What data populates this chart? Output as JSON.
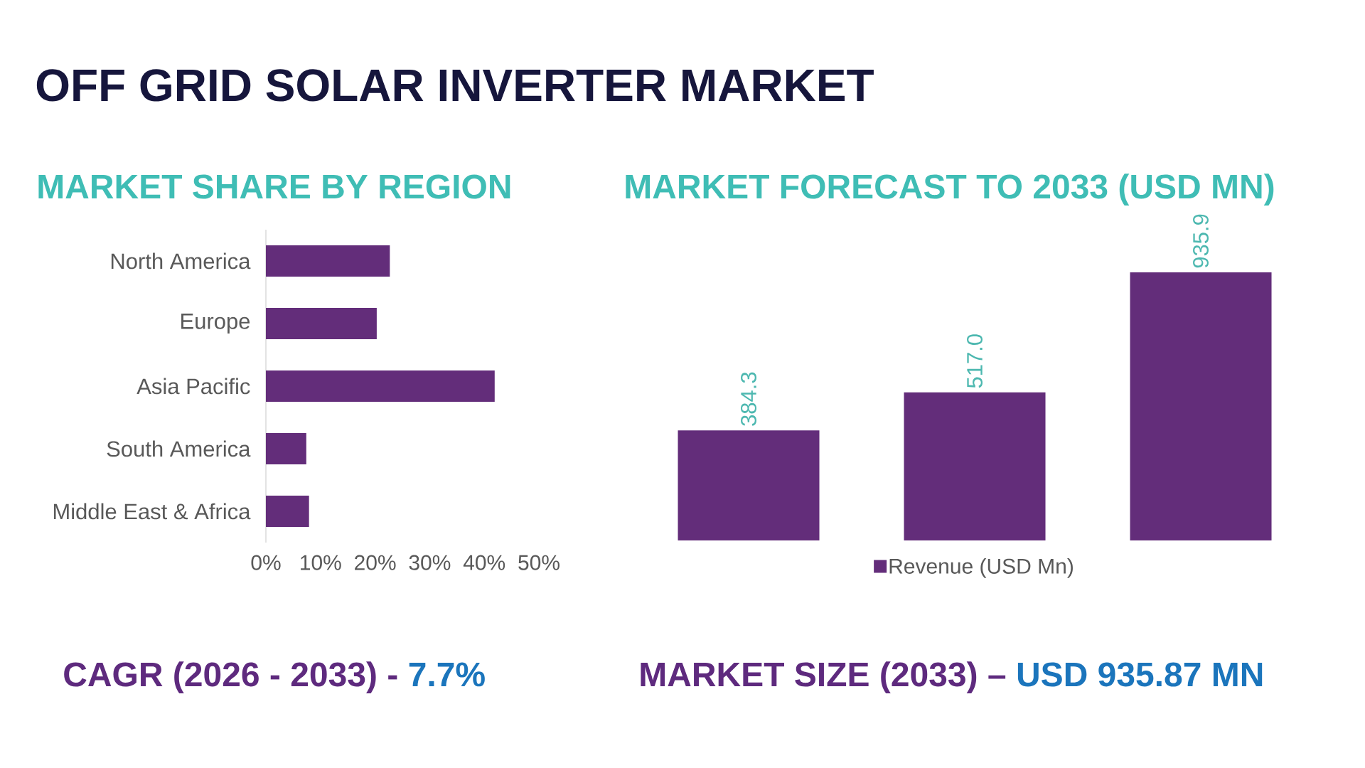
{
  "chart_data": [
    {
      "type": "other",
      "title": "OFF GRID SOLAR INVERTER MARKET"
    },
    {
      "type": "bar",
      "orientation": "horizontal",
      "title": "MARKET SHARE BY REGION",
      "categories": [
        "North America",
        "Europe",
        "Asia Pacific",
        "South America",
        "Middle East & Africa"
      ],
      "values": [
        22.7,
        20.3,
        41.9,
        7.4,
        7.9
      ],
      "color": "#632d7a",
      "xlim": [
        0,
        50
      ],
      "xticks": [
        {
          "value": 0,
          "label": "0%"
        },
        {
          "value": 10,
          "label": "10%"
        },
        {
          "value": 20,
          "label": "20%"
        },
        {
          "value": 30,
          "label": "30%"
        },
        {
          "value": 40,
          "label": "40%"
        },
        {
          "value": 50,
          "label": "50%"
        }
      ],
      "annotations": [
        "CAGR (2026 - 2033) -",
        "7.7%"
      ]
    },
    {
      "type": "bar",
      "title": "MARKET FORECAST TO 2033 (USD MN)",
      "categories": [
        null,
        null,
        null
      ],
      "series": [
        {
          "name": "Revenue (USD Mn)",
          "color": "#632d7a",
          "values": [
            384.3,
            517.0,
            935.9
          ],
          "value_labels": [
            "384.3",
            "517.0",
            "935.9"
          ]
        }
      ],
      "legend": "bottom",
      "annotations": [
        "MARKET SIZE (2033) –",
        "USD 935.87 MN"
      ]
    }
  ]
}
